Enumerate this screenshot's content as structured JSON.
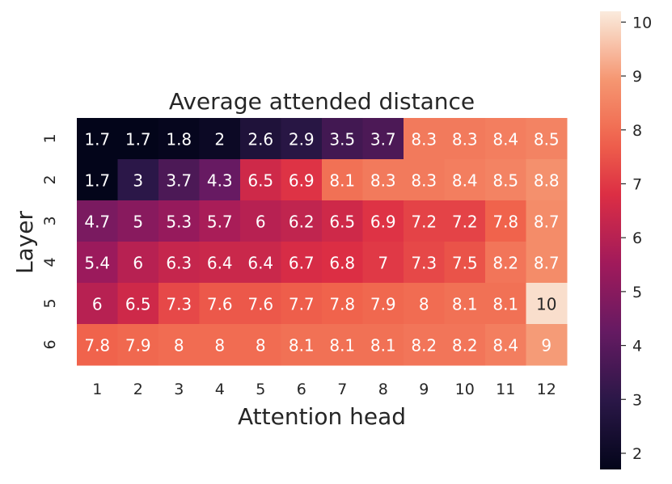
{
  "chart_data": {
    "type": "heatmap",
    "title": "Average attended distance",
    "xlabel": "Attention head",
    "ylabel": "Layer",
    "x_categories": [
      "1",
      "2",
      "3",
      "4",
      "5",
      "6",
      "7",
      "8",
      "9",
      "10",
      "11",
      "12"
    ],
    "y_categories": [
      "1",
      "2",
      "3",
      "4",
      "5",
      "6"
    ],
    "values": [
      [
        "1.7",
        "1.7",
        "1.8",
        "2",
        "2.6",
        "2.9",
        "3.5",
        "3.7",
        "8.3",
        "8.3",
        "8.4",
        "8.5"
      ],
      [
        "1.7",
        "3",
        "3.7",
        "4.3",
        "6.5",
        "6.9",
        "8.1",
        "8.3",
        "8.3",
        "8.4",
        "8.5",
        "8.8"
      ],
      [
        "4.7",
        "5",
        "5.3",
        "5.7",
        "6",
        "6.2",
        "6.5",
        "6.9",
        "7.2",
        "7.2",
        "7.8",
        "8.7"
      ],
      [
        "5.4",
        "6",
        "6.3",
        "6.4",
        "6.4",
        "6.7",
        "6.8",
        "7",
        "7.3",
        "7.5",
        "8.2",
        "8.7"
      ],
      [
        "6",
        "6.5",
        "7.3",
        "7.6",
        "7.6",
        "7.7",
        "7.8",
        "7.9",
        "8",
        "8.1",
        "8.1",
        "10"
      ],
      [
        "7.8",
        "7.9",
        "8",
        "8",
        "8",
        "8.1",
        "8.1",
        "8.1",
        "8.2",
        "8.2",
        "8.4",
        "9"
      ]
    ],
    "colorbar": {
      "min": 1.7,
      "max": 10.2,
      "ticks": [
        "2",
        "3",
        "4",
        "5",
        "6",
        "7",
        "8",
        "9",
        "10"
      ],
      "colormap": "rocket"
    },
    "grid": false
  }
}
